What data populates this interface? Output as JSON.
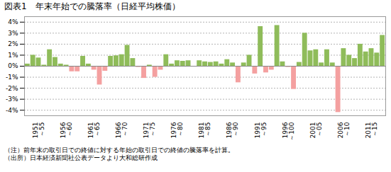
{
  "chart_data": {
    "type": "bar",
    "title": "図表1　年末年始での騰落率（日経平均株価）",
    "annotations": [
      "（注）前年末の取引日での終値に対する年始の取引日での終値の騰落率を計算。",
      "（出所）日本経済新聞社公表データより大和総研作成"
    ],
    "categories": [
      null,
      null,
      "1951\n～55",
      null,
      null,
      null,
      null,
      "1956\n～60",
      null,
      null,
      null,
      null,
      "1961\n～65",
      null,
      null,
      null,
      null,
      "1966\n～70",
      null,
      null,
      null,
      null,
      "1971\n～75",
      null,
      null,
      null,
      null,
      "1976\n～80",
      null,
      null,
      null,
      null,
      "1981\n～85",
      null,
      null,
      null,
      null,
      "1986\n～90",
      null,
      null,
      null,
      null,
      "1991\n～95",
      null,
      null,
      null,
      null,
      "1996\n～100",
      null,
      null,
      null,
      null,
      "2001\n～05",
      null,
      null,
      null,
      null,
      "2006\n～10",
      null,
      null,
      null,
      null,
      "2011\n～15",
      null,
      null
    ],
    "values": [
      0.2,
      1.0,
      0.75,
      0.1,
      1.5,
      0.8,
      0.2,
      0.1,
      -0.5,
      -0.5,
      0.9,
      0.2,
      -0.35,
      -1.7,
      -0.45,
      0.9,
      0.95,
      1.05,
      1.9,
      0.7,
      -0.1,
      -1.1,
      0.1,
      -1.0,
      -0.35,
      1.05,
      0.2,
      0.5,
      0.45,
      0.5,
      -0.05,
      0.5,
      0.4,
      0.35,
      0.4,
      0.2,
      0.6,
      0.3,
      -1.5,
      0.3,
      1.0,
      -0.7,
      3.6,
      -0.6,
      -0.35,
      3.7,
      0.4,
      -0.1,
      -2.1,
      0.35,
      3.0,
      1.4,
      1.5,
      0.3,
      1.5,
      0.3,
      -4.2,
      1.6,
      1.0,
      0.7,
      2.0,
      1.3,
      1.6,
      1.2,
      2.8
    ],
    "colors": [
      "#8fbc5a",
      "#8fbc5a",
      "#8fbc5a",
      "#8fbc5a",
      "#8fbc5a",
      "#8fbc5a",
      "#8fbc5a",
      "#8fbc5a",
      "#f4a0a0",
      "#f4a0a0",
      "#8fbc5a",
      "#8fbc5a",
      "#f4a0a0",
      "#f4a0a0",
      "#f4a0a0",
      "#8fbc5a",
      "#8fbc5a",
      "#8fbc5a",
      "#8fbc5a",
      "#8fbc5a",
      "#f4a0a0",
      "#f4a0a0",
      "#8fbc5a",
      "#f4a0a0",
      "#f4a0a0",
      "#8fbc5a",
      "#8fbc5a",
      "#8fbc5a",
      "#8fbc5a",
      "#8fbc5a",
      "#f4a0a0",
      "#8fbc5a",
      "#8fbc5a",
      "#8fbc5a",
      "#8fbc5a",
      "#8fbc5a",
      "#8fbc5a",
      "#8fbc5a",
      "#f4a0a0",
      "#8fbc5a",
      "#8fbc5a",
      "#f4a0a0",
      "#8fbc5a",
      "#f4a0a0",
      "#f4a0a0",
      "#8fbc5a",
      "#8fbc5a",
      "#f4a0a0",
      "#f4a0a0",
      "#8fbc5a",
      "#8fbc5a",
      "#8fbc5a",
      "#8fbc5a",
      "#8fbc5a",
      "#8fbc5a",
      "#8fbc5a",
      "#f4a0a0",
      "#8fbc5a",
      "#8fbc5a",
      "#8fbc5a",
      "#8fbc5a",
      "#8fbc5a",
      "#8fbc5a",
      "#8fbc5a",
      "#8fbc5a"
    ],
    "ylim": [
      -4.5,
      4.5
    ],
    "yticks": [
      {
        "value": -4,
        "label": "-4%"
      },
      {
        "value": -3,
        "label": "-3%"
      },
      {
        "value": -2,
        "label": "-2%"
      },
      {
        "value": -1,
        "label": "-1%"
      },
      {
        "value": 0,
        "label": "0%"
      },
      {
        "value": 1,
        "label": "1%"
      },
      {
        "value": 2,
        "label": "2%"
      },
      {
        "value": 3,
        "label": "3%"
      },
      {
        "value": 4,
        "label": "4%"
      }
    ],
    "grid": true
  }
}
